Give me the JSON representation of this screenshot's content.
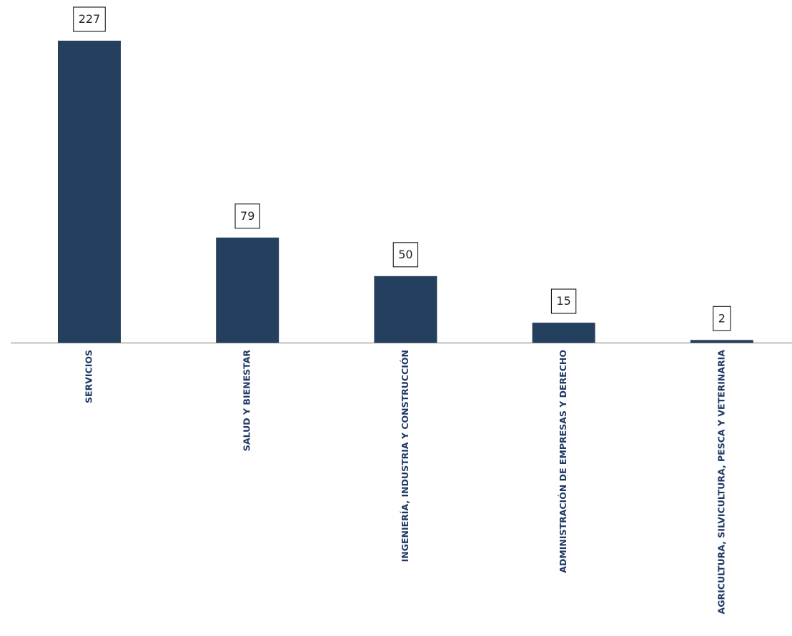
{
  "chart_data": {
    "type": "bar",
    "categories": [
      "SERVICIOS",
      "SALUD Y BIENESTAR",
      "INGENIERÍA, INDUSTRIA Y CONSTRUCCIÓN",
      "ADMINISTRACIÓN DE EMPRESAS Y DERECHO",
      "AGRICULTURA, SILVICULTURA, PESCA Y VETERINARIA"
    ],
    "values": [
      227,
      79,
      50,
      15,
      2
    ],
    "color": "#253f5f"
  }
}
